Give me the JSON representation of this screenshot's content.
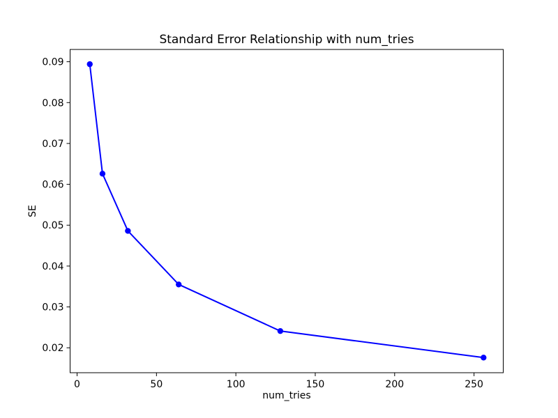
{
  "chart_data": {
    "type": "line",
    "title": "Standard Error Relationship with num_tries",
    "xlabel": "num_tries",
    "ylabel": "SE",
    "x": [
      8,
      16,
      32,
      64,
      128,
      256
    ],
    "y": [
      0.0894,
      0.0626,
      0.0486,
      0.0355,
      0.0241,
      0.0176
    ],
    "xlim": [
      -4.4,
      268.4
    ],
    "ylim": [
      0.0139,
      0.093
    ],
    "xticks": [
      0,
      50,
      100,
      150,
      200,
      250
    ],
    "yticks": [
      0.02,
      0.03,
      0.04,
      0.05,
      0.06,
      0.07,
      0.08,
      0.09
    ],
    "ytick_decimals": 2,
    "line_color": "#0000ff",
    "marker": "o",
    "marker_color": "#0000ff",
    "axis_color": "#000000",
    "background_color": "#ffffff",
    "grid": false,
    "legend": null
  }
}
